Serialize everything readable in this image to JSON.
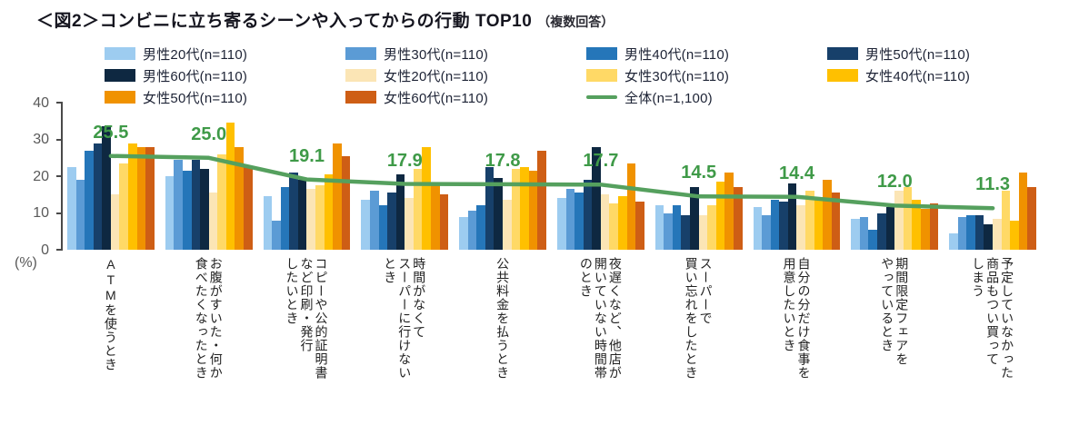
{
  "title": {
    "main": "＜図2＞コンビニに立ち寄るシーンや入ってからの行動 TOP10",
    "suffix": "（複数回答）"
  },
  "axis": {
    "unit": "(%)",
    "ticks": [
      40,
      30,
      20,
      10,
      0
    ],
    "ymax": 40
  },
  "colors": {
    "axis_gray": "#595959",
    "value_label_green": "#3f9a48",
    "line_green": "#55a05e"
  },
  "chart_data": {
    "type": "bar",
    "title": "＜図2＞コンビニに立ち寄るシーンや入ってからの行動 TOP10（複数回答）",
    "ylabel": "(%)",
    "ylim": [
      0,
      40
    ],
    "grid": false,
    "legend_position": "top",
    "categories": [
      "ATMを使うとき",
      "お腹がすいた・何か食べたくなったとき",
      "コピーや公的証明書など印刷・発行したいとき",
      "時間がなくてスーパーに行けないとき",
      "公共料金を払うとき",
      "夜遅くなど、他店が開いていない時間帯のとき",
      "スーパーで買い忘れをしたとき",
      "自分の分だけ食事を用意したいとき",
      "期間限定フェアをやっているとき",
      "予定していなかった商品もつい買ってしまう"
    ],
    "categories_display": [
      "ATMを使うとき",
      "お腹がすいた・何か\n食べたくなったとき",
      "コピーや公的証明書\nなど印刷・発行\nしたいとき",
      "時間がなくて\nスーパーに行けない\nとき",
      "公共料金を払うとき",
      "夜遅くなど、他店が\n開いていない時間帯\nのとき",
      "スーパーで\n買い忘れをしたとき",
      "自分の分だけ食事を\n用意したいとき",
      "期間限定フェアを\nやっているとき",
      "予定していなかった\n商品もつい買って\nしまう"
    ],
    "series": [
      {
        "name": "男性20代(n=110)",
        "color": "#9dccf0",
        "values": [
          22.5,
          20.0,
          14.5,
          13.5,
          9.0,
          14.0,
          12.0,
          11.5,
          8.5,
          4.5
        ]
      },
      {
        "name": "男性30代(n=110)",
        "color": "#5b9bd5",
        "values": [
          19.0,
          24.5,
          8.0,
          16.0,
          10.5,
          16.5,
          10.0,
          9.5,
          9.0,
          9.0
        ]
      },
      {
        "name": "男性40代(n=110)",
        "color": "#2576b9",
        "values": [
          27.0,
          21.5,
          17.0,
          12.0,
          12.0,
          15.5,
          12.0,
          13.5,
          5.5,
          9.5
        ]
      },
      {
        "name": "男性50代(n=110)",
        "color": "#17406a",
        "values": [
          29.0,
          24.5,
          21.0,
          15.5,
          22.5,
          19.0,
          9.5,
          13.0,
          10.0,
          9.5
        ]
      },
      {
        "name": "男性60代(n=110)",
        "color": "#0e2841",
        "values": [
          33.5,
          22.0,
          19.0,
          20.5,
          19.5,
          28.0,
          17.0,
          18.0,
          11.5,
          7.0
        ]
      },
      {
        "name": "女性20代(n=110)",
        "color": "#fbe5b5",
        "values": [
          15.0,
          15.5,
          16.5,
          14.0,
          13.5,
          15.0,
          9.5,
          12.0,
          16.0,
          8.5
        ]
      },
      {
        "name": "女性30代(n=110)",
        "color": "#ffd966",
        "values": [
          23.5,
          26.0,
          17.5,
          22.0,
          22.0,
          12.5,
          12.0,
          16.0,
          17.0,
          16.0
        ]
      },
      {
        "name": "女性40代(n=110)",
        "color": "#ffc000",
        "values": [
          29.0,
          34.5,
          20.5,
          28.0,
          22.5,
          14.5,
          18.5,
          13.5,
          13.5,
          8.0
        ]
      },
      {
        "name": "女性50代(n=110)",
        "color": "#f09200",
        "values": [
          28.0,
          28.0,
          29.0,
          17.5,
          21.5,
          23.5,
          21.0,
          19.0,
          11.0,
          21.0
        ]
      },
      {
        "name": "女性60代(n=110)",
        "color": "#ce5e15",
        "values": [
          28.0,
          22.5,
          25.5,
          15.0,
          27.0,
          13.0,
          17.0,
          15.5,
          12.5,
          17.0
        ]
      }
    ],
    "line_series": {
      "name": "全体(n=1,100)",
      "color": "#55a05e",
      "values": [
        25.5,
        25.0,
        19.1,
        17.9,
        17.8,
        17.7,
        14.5,
        14.4,
        12.0,
        11.3
      ]
    }
  }
}
